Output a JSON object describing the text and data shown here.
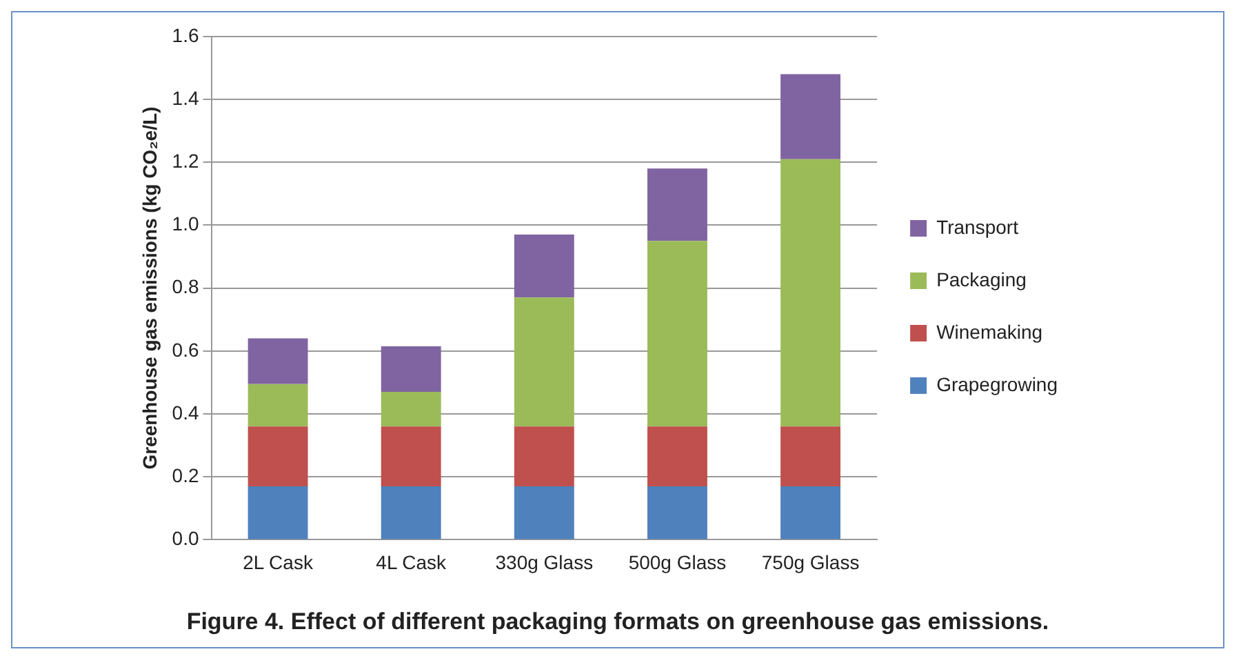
{
  "chart_data": {
    "type": "bar",
    "stacked": true,
    "ylabel": "Greenhouse gas emissions (kg CO₂e/L)",
    "annotations": [
      "Figure 4. Effect of different packaging formats on greenhouse gas emissions."
    ],
    "categories": [
      "2L Cask",
      "4L Cask",
      "330g Glass",
      "500g Glass",
      "750g Glass"
    ],
    "series": [
      {
        "name": "Grapegrowing",
        "color": "#4f81bd",
        "values": [
          0.17,
          0.17,
          0.17,
          0.17,
          0.17
        ]
      },
      {
        "name": "Winemaking",
        "color": "#c0504d",
        "values": [
          0.19,
          0.19,
          0.19,
          0.19,
          0.19
        ]
      },
      {
        "name": "Packaging",
        "color": "#9bbb59",
        "values": [
          0.135,
          0.11,
          0.41,
          0.59,
          0.85
        ]
      },
      {
        "name": "Transport",
        "color": "#8064a2",
        "values": [
          0.145,
          0.145,
          0.2,
          0.23,
          0.27
        ]
      }
    ],
    "ylim": [
      0,
      1.6
    ],
    "yticks": [
      {
        "value": 0,
        "label": "0.0"
      },
      0.2,
      0.4,
      0.6,
      0.8,
      {
        "value": 1,
        "label": "1.0"
      },
      1.2,
      1.4,
      1.6
    ],
    "grid": "y",
    "legend": "right"
  }
}
